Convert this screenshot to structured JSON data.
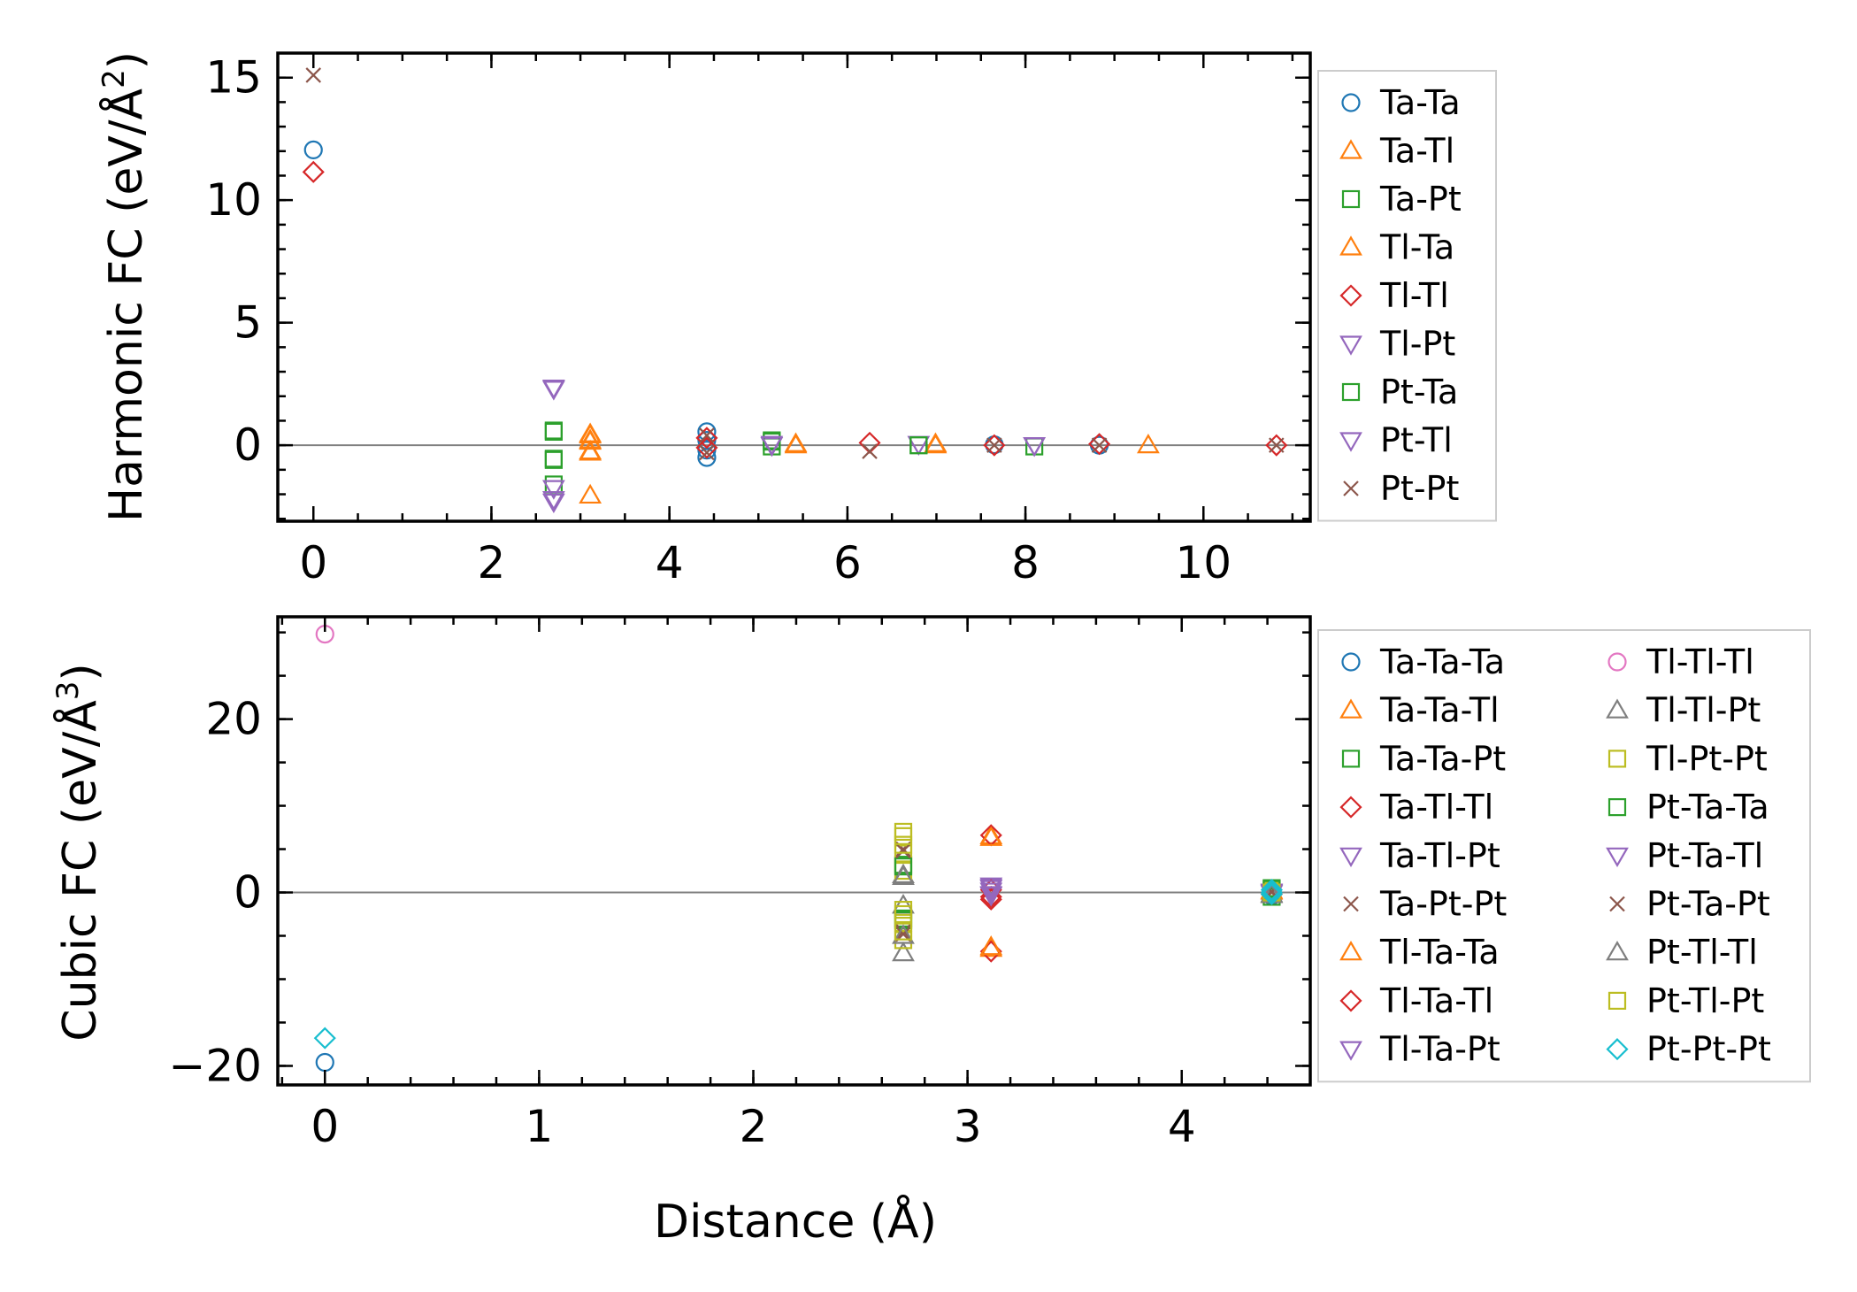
{
  "figure": {
    "xlabel": "Distance (Å)"
  },
  "chart_data": [
    {
      "type": "scatter",
      "name": "harmonic",
      "ylabel_main": "Harmonic FC (eV/Å",
      "ylabel_sup": "2",
      "ylabel_close": ")",
      "xlim": [
        -0.4,
        11.2
      ],
      "ylim": [
        -3.1,
        16.0
      ],
      "xticks": [
        0,
        2,
        4,
        6,
        8,
        10
      ],
      "yticks": [
        0,
        5,
        10,
        15
      ],
      "xminor_step": 0.5,
      "yminor_step": 1,
      "reference_line": 0,
      "legend_columns": 1,
      "series": [
        {
          "name": "Ta-Ta",
          "marker": "circle",
          "color": "#1f77b4",
          "points": [
            [
              0,
              12.05
            ],
            [
              4.42,
              0.55
            ],
            [
              4.42,
              -0.5
            ],
            [
              4.42,
              0.2
            ],
            [
              4.42,
              -0.2
            ],
            [
              7.65,
              0.02
            ],
            [
              8.83,
              0.0
            ]
          ]
        },
        {
          "name": "Ta-Tl",
          "marker": "triangle-up",
          "color": "#ff7f0e",
          "points": [
            [
              3.11,
              0.45
            ],
            [
              3.11,
              0.2
            ],
            [
              3.11,
              -0.25
            ],
            [
              3.11,
              -2.05
            ],
            [
              5.42,
              0.05
            ],
            [
              6.99,
              0.0
            ],
            [
              9.38,
              0.0
            ]
          ]
        },
        {
          "name": "Ta-Pt",
          "marker": "square",
          "color": "#2ca02c",
          "points": [
            [
              2.7,
              0.6
            ],
            [
              2.7,
              -0.55
            ],
            [
              2.7,
              -1.6
            ],
            [
              5.15,
              0.2
            ],
            [
              5.15,
              -0.05
            ],
            [
              6.8,
              0.0
            ],
            [
              8.1,
              -0.05
            ]
          ]
        },
        {
          "name": "Tl-Ta",
          "marker": "triangle-up",
          "color": "#ff7f0e",
          "points": [
            [
              3.11,
              0.4
            ],
            [
              3.11,
              0.15
            ],
            [
              3.11,
              -0.3
            ],
            [
              5.42,
              0.0
            ],
            [
              6.99,
              0.05
            ]
          ]
        },
        {
          "name": "Tl-Tl",
          "marker": "diamond",
          "color": "#d62728",
          "points": [
            [
              0,
              11.15
            ],
            [
              4.42,
              0.3
            ],
            [
              4.42,
              -0.1
            ],
            [
              6.25,
              0.1
            ],
            [
              7.65,
              0.0
            ],
            [
              8.83,
              0.05
            ],
            [
              10.82,
              0.0
            ]
          ]
        },
        {
          "name": "Tl-Pt",
          "marker": "triangle-down",
          "color": "#9467bd",
          "points": [
            [
              2.7,
              2.35
            ],
            [
              2.7,
              -1.75
            ],
            [
              2.7,
              -2.3
            ],
            [
              5.15,
              0.0
            ],
            [
              6.8,
              0.05
            ],
            [
              8.1,
              0.0
            ]
          ]
        },
        {
          "name": "Pt-Ta",
          "marker": "square",
          "color": "#2ca02c",
          "points": [
            [
              2.7,
              0.55
            ],
            [
              2.7,
              -0.6
            ],
            [
              5.15,
              0.15
            ],
            [
              6.8,
              0.0
            ]
          ]
        },
        {
          "name": "Pt-Tl",
          "marker": "triangle-down",
          "color": "#9467bd",
          "points": [
            [
              2.7,
              2.3
            ],
            [
              2.7,
              -2.2
            ],
            [
              5.15,
              0.05
            ],
            [
              8.1,
              0.0
            ]
          ]
        },
        {
          "name": "Pt-Pt",
          "marker": "x",
          "color": "#8c564b",
          "points": [
            [
              0,
              15.1
            ],
            [
              4.42,
              0.4
            ],
            [
              4.42,
              -0.3
            ],
            [
              6.25,
              -0.25
            ],
            [
              7.65,
              0.0
            ],
            [
              8.83,
              0.0
            ],
            [
              10.82,
              0.0
            ]
          ]
        }
      ]
    },
    {
      "type": "scatter",
      "name": "cubic",
      "ylabel_main": "Cubic FC (eV/Å",
      "ylabel_sup": "3",
      "ylabel_close": ")",
      "xlim": [
        -0.22,
        4.6
      ],
      "ylim": [
        -22.2,
        31.8
      ],
      "xticks": [
        0,
        1,
        2,
        3,
        4
      ],
      "yticks": [
        -20,
        0,
        20
      ],
      "ytick_labels": [
        "−20",
        "0",
        "20"
      ],
      "xminor_step": 0.2,
      "yminor_step": 5,
      "reference_line": 0,
      "legend_columns": 2,
      "series": [
        {
          "name": "Ta-Ta-Ta",
          "marker": "circle",
          "color": "#1f77b4",
          "points": [
            [
              0,
              -19.6
            ],
            [
              4.42,
              0.3
            ],
            [
              4.42,
              -0.4
            ]
          ]
        },
        {
          "name": "Ta-Ta-Tl",
          "marker": "triangle-up",
          "color": "#ff7f0e",
          "points": [
            [
              3.11,
              6.5
            ],
            [
              3.11,
              -6.5
            ],
            [
              4.42,
              0.2
            ]
          ]
        },
        {
          "name": "Ta-Ta-Pt",
          "marker": "square",
          "color": "#2ca02c",
          "points": [
            [
              2.7,
              3.2
            ],
            [
              2.7,
              -3.0
            ],
            [
              4.42,
              0.5
            ],
            [
              4.42,
              -0.5
            ]
          ]
        },
        {
          "name": "Ta-Tl-Tl",
          "marker": "diamond",
          "color": "#d62728",
          "points": [
            [
              3.11,
              6.6
            ],
            [
              3.11,
              -6.8
            ],
            [
              3.11,
              -0.5
            ],
            [
              4.42,
              -0.2
            ]
          ]
        },
        {
          "name": "Ta-Tl-Pt",
          "marker": "triangle-down",
          "color": "#9467bd",
          "points": [
            [
              3.11,
              0.6
            ],
            [
              3.11,
              -0.3
            ],
            [
              4.42,
              0.1
            ]
          ]
        },
        {
          "name": "Ta-Pt-Pt",
          "marker": "x",
          "color": "#8c564b",
          "points": [
            [
              2.7,
              5.0
            ],
            [
              2.7,
              -4.5
            ],
            [
              4.42,
              0.0
            ]
          ]
        },
        {
          "name": "Tl-Ta-Ta",
          "marker": "triangle-up",
          "color": "#ff7f0e",
          "points": [
            [
              3.11,
              6.3
            ],
            [
              3.11,
              -6.3
            ],
            [
              4.42,
              0.1
            ]
          ]
        },
        {
          "name": "Tl-Ta-Tl",
          "marker": "diamond",
          "color": "#d62728",
          "points": [
            [
              3.11,
              0.3
            ],
            [
              3.11,
              -0.8
            ],
            [
              4.42,
              0.0
            ]
          ]
        },
        {
          "name": "Tl-Ta-Pt",
          "marker": "triangle-down",
          "color": "#9467bd",
          "points": [
            [
              3.11,
              0.8
            ],
            [
              3.11,
              0.2
            ],
            [
              4.42,
              -0.1
            ]
          ]
        },
        {
          "name": "Tl-Tl-Tl",
          "marker": "circle",
          "color": "#e377c2",
          "points": [
            [
              0,
              29.8
            ],
            [
              4.42,
              0.2
            ]
          ]
        },
        {
          "name": "Tl-Tl-Pt",
          "marker": "triangle-up",
          "color": "#7f7f7f",
          "points": [
            [
              2.7,
              2.0
            ],
            [
              2.7,
              -7.0
            ],
            [
              2.7,
              -1.5
            ],
            [
              4.42,
              -0.3
            ]
          ]
        },
        {
          "name": "Tl-Pt-Pt",
          "marker": "square",
          "color": "#bcbd22",
          "points": [
            [
              2.7,
              7.0
            ],
            [
              2.7,
              4.5
            ],
            [
              2.7,
              2.5
            ],
            [
              2.7,
              -2.0
            ],
            [
              2.7,
              -3.5
            ],
            [
              2.7,
              -5.5
            ],
            [
              4.42,
              0.2
            ]
          ]
        },
        {
          "name": "Pt-Ta-Ta",
          "marker": "square",
          "color": "#2ca02c",
          "points": [
            [
              2.7,
              3.0
            ],
            [
              2.7,
              -3.2
            ],
            [
              4.42,
              0.4
            ]
          ]
        },
        {
          "name": "Pt-Ta-Tl",
          "marker": "triangle-down",
          "color": "#9467bd",
          "points": [
            [
              3.11,
              0.5
            ],
            [
              3.11,
              -0.2
            ],
            [
              4.42,
              0.0
            ]
          ]
        },
        {
          "name": "Pt-Ta-Pt",
          "marker": "x",
          "color": "#8c564b",
          "points": [
            [
              2.7,
              4.8
            ],
            [
              2.7,
              -4.8
            ],
            [
              4.42,
              0.1
            ]
          ]
        },
        {
          "name": "Pt-Tl-Tl",
          "marker": "triangle-up",
          "color": "#7f7f7f",
          "points": [
            [
              2.7,
              1.8
            ],
            [
              2.7,
              -5.0
            ],
            [
              4.42,
              -0.2
            ]
          ]
        },
        {
          "name": "Pt-Tl-Pt",
          "marker": "square",
          "color": "#bcbd22",
          "points": [
            [
              2.7,
              6.5
            ],
            [
              2.7,
              5.5
            ],
            [
              2.7,
              -2.5
            ],
            [
              2.7,
              -4.5
            ],
            [
              4.42,
              0.0
            ]
          ]
        },
        {
          "name": "Pt-Pt-Pt",
          "marker": "diamond",
          "color": "#17becf",
          "points": [
            [
              0,
              -16.8
            ],
            [
              4.42,
              0.3
            ],
            [
              4.42,
              -0.2
            ],
            [
              4.42,
              0.0
            ]
          ]
        }
      ]
    }
  ]
}
